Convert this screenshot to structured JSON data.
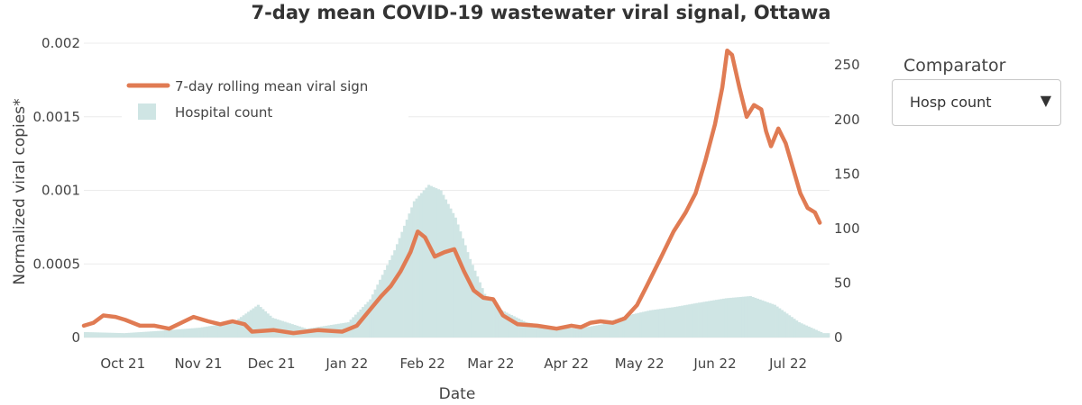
{
  "chart_data": {
    "type": "line+bar",
    "title": "7-day mean COVID-19 wastewater viral signal, Ottawa",
    "xlabel": "Date",
    "ylabel": "Normalized viral copies*",
    "ylim": [
      0,
      0.002
    ],
    "y2lim": [
      0,
      270
    ],
    "xlim": [
      "2021-09-15",
      "2022-07-18"
    ],
    "y_ticks": [
      "0",
      "0.0005",
      "0.001",
      "0.0015",
      "0.002"
    ],
    "y2_ticks": [
      "0",
      "50",
      "100",
      "150",
      "200",
      "250"
    ],
    "x_ticks": [
      "Oct 21",
      "Nov 21",
      "Dec 21",
      "Jan 22",
      "Feb 22",
      "Mar 22",
      "Apr 22",
      "May 22",
      "Jun 22",
      "Jul 22"
    ],
    "legend": {
      "placement": "top-left",
      "entries": [
        "7-day rolling mean viral sign",
        "Hospital count"
      ]
    },
    "series": [
      {
        "name": "7-day rolling mean viral sign",
        "type": "line",
        "axis": "y",
        "color": "#e07b53",
        "points": [
          [
            "2021-09-15",
            8e-05
          ],
          [
            "2021-09-19",
            0.0001
          ],
          [
            "2021-09-23",
            0.00015
          ],
          [
            "2021-09-28",
            0.00014
          ],
          [
            "2021-10-02",
            0.00012
          ],
          [
            "2021-10-08",
            8e-05
          ],
          [
            "2021-10-14",
            8e-05
          ],
          [
            "2021-10-20",
            6e-05
          ],
          [
            "2021-10-25",
            0.0001
          ],
          [
            "2021-10-30",
            0.00014
          ],
          [
            "2021-11-05",
            0.00011
          ],
          [
            "2021-11-10",
            9e-05
          ],
          [
            "2021-11-15",
            0.00011
          ],
          [
            "2021-11-20",
            9e-05
          ],
          [
            "2021-11-23",
            4e-05
          ],
          [
            "2021-12-02",
            5e-05
          ],
          [
            "2021-12-10",
            3e-05
          ],
          [
            "2021-12-20",
            5e-05
          ],
          [
            "2021-12-30",
            4e-05
          ],
          [
            "2022-01-05",
            8e-05
          ],
          [
            "2022-01-10",
            0.00018
          ],
          [
            "2022-01-15",
            0.00028
          ],
          [
            "2022-01-19",
            0.00035
          ],
          [
            "2022-01-23",
            0.00045
          ],
          [
            "2022-01-27",
            0.00058
          ],
          [
            "2022-01-30",
            0.00072
          ],
          [
            "2022-02-02",
            0.00068
          ],
          [
            "2022-02-06",
            0.00055
          ],
          [
            "2022-02-10",
            0.00058
          ],
          [
            "2022-02-14",
            0.0006
          ],
          [
            "2022-02-18",
            0.00045
          ],
          [
            "2022-02-22",
            0.00032
          ],
          [
            "2022-02-26",
            0.00027
          ],
          [
            "2022-03-02",
            0.00026
          ],
          [
            "2022-03-06",
            0.00015
          ],
          [
            "2022-03-12",
            9e-05
          ],
          [
            "2022-03-20",
            8e-05
          ],
          [
            "2022-03-28",
            6e-05
          ],
          [
            "2022-04-03",
            8e-05
          ],
          [
            "2022-04-07",
            7e-05
          ],
          [
            "2022-04-11",
            0.0001
          ],
          [
            "2022-04-15",
            0.00011
          ],
          [
            "2022-04-20",
            0.0001
          ],
          [
            "2022-04-25",
            0.00013
          ],
          [
            "2022-04-30",
            0.00022
          ],
          [
            "2022-05-04",
            0.00035
          ],
          [
            "2022-05-10",
            0.00055
          ],
          [
            "2022-05-15",
            0.00072
          ],
          [
            "2022-05-20",
            0.00085
          ],
          [
            "2022-05-24",
            0.00098
          ],
          [
            "2022-05-28",
            0.0012
          ],
          [
            "2022-06-01",
            0.00145
          ],
          [
            "2022-06-04",
            0.0017
          ],
          [
            "2022-06-06",
            0.00195
          ],
          [
            "2022-06-08",
            0.00192
          ],
          [
            "2022-06-11",
            0.0017
          ],
          [
            "2022-06-14",
            0.0015
          ],
          [
            "2022-06-17",
            0.00158
          ],
          [
            "2022-06-20",
            0.00155
          ],
          [
            "2022-06-22",
            0.0014
          ],
          [
            "2022-06-24",
            0.0013
          ],
          [
            "2022-06-27",
            0.00142
          ],
          [
            "2022-06-30",
            0.00132
          ],
          [
            "2022-07-03",
            0.00115
          ],
          [
            "2022-07-06",
            0.00098
          ],
          [
            "2022-07-09",
            0.00088
          ],
          [
            "2022-07-12",
            0.00085
          ],
          [
            "2022-07-14",
            0.00078
          ]
        ]
      },
      {
        "name": "Hospital count",
        "type": "bar",
        "axis": "y2",
        "color": "#cfe5e4",
        "points": [
          [
            "2021-09-15",
            5
          ],
          [
            "2021-10-01",
            4
          ],
          [
            "2021-10-15",
            6
          ],
          [
            "2021-11-01",
            9
          ],
          [
            "2021-11-15",
            14
          ],
          [
            "2021-11-25",
            30
          ],
          [
            "2021-12-01",
            18
          ],
          [
            "2021-12-15",
            8
          ],
          [
            "2022-01-01",
            14
          ],
          [
            "2022-01-10",
            35
          ],
          [
            "2022-01-20",
            80
          ],
          [
            "2022-01-28",
            125
          ],
          [
            "2022-02-03",
            140
          ],
          [
            "2022-02-08",
            135
          ],
          [
            "2022-02-14",
            110
          ],
          [
            "2022-02-20",
            72
          ],
          [
            "2022-02-26",
            40
          ],
          [
            "2022-03-05",
            25
          ],
          [
            "2022-03-15",
            14
          ],
          [
            "2022-03-25",
            10
          ],
          [
            "2022-04-05",
            8
          ],
          [
            "2022-04-15",
            12
          ],
          [
            "2022-04-25",
            20
          ],
          [
            "2022-05-05",
            25
          ],
          [
            "2022-05-15",
            28
          ],
          [
            "2022-05-25",
            32
          ],
          [
            "2022-06-05",
            36
          ],
          [
            "2022-06-15",
            38
          ],
          [
            "2022-06-25",
            30
          ],
          [
            "2022-07-05",
            14
          ],
          [
            "2022-07-15",
            4
          ]
        ]
      }
    ]
  },
  "comparator": {
    "label": "Comparator",
    "selected": "Hosp count"
  }
}
